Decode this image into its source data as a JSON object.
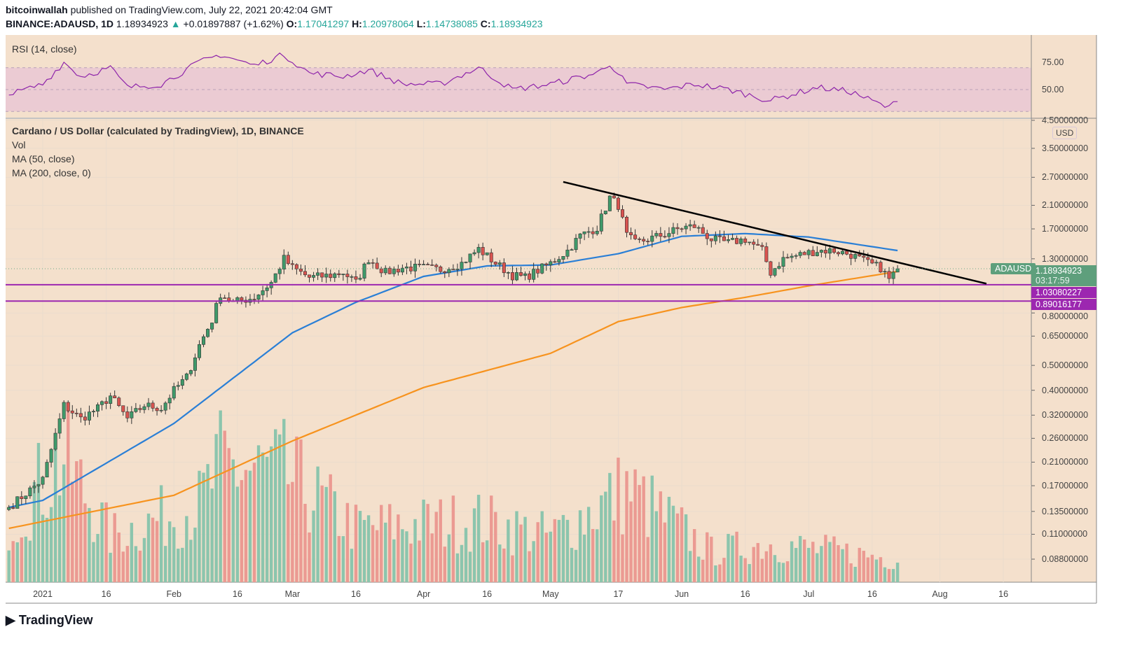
{
  "header": {
    "author": "bitcoinwallah",
    "published": "published on TradingView.com, July 22, 2021 20:42:04 GMT",
    "symbol": "BINANCE:ADAUSD, 1D",
    "last": "1.18934923",
    "change": "+0.01897887 (+1.62%)",
    "o_label": "O:",
    "o": "1.17041297",
    "h_label": "H:",
    "h": "1.20978064",
    "l_label": "L:",
    "l": "1.14738085",
    "c_label": "C:",
    "c": "1.18934923"
  },
  "legend": {
    "title": "Cardano / US Dollar (calculated by TradingView), 1D, BINANCE",
    "vol": "Vol",
    "ma50": "MA (50, close)",
    "ma200": "MA (200, close, 0)",
    "rsi": "RSI (14, close)"
  },
  "brand": "TradingView",
  "colors": {
    "background": "#f4e0cc",
    "up": "#3f9a6a",
    "down": "#d9534f",
    "ma50": "#2a7fd6",
    "ma200": "#f7931e",
    "rsi": "#8e24aa",
    "levels": "#9c27b0",
    "trendline": "#000000"
  },
  "chart_data": {
    "type": "candlestick",
    "y_scale": "log",
    "currency": "USD",
    "y_ticks": [
      "4.50000000",
      "3.50000000",
      "2.70000000",
      "2.10000000",
      "1.70000000",
      "1.30000000",
      "0.80000000",
      "0.65000000",
      "0.50000000",
      "0.40000000",
      "0.32000000",
      "0.26000000",
      "0.21000000",
      "0.17000000",
      "0.13500000",
      "0.11000000",
      "0.08800000"
    ],
    "x_ticks": [
      [
        "2021",
        "2021-01-01"
      ],
      [
        "16",
        "2021-01-16"
      ],
      [
        "Feb",
        "2021-02-01"
      ],
      [
        "16",
        "2021-02-16"
      ],
      [
        "Mar",
        "2021-03-01"
      ],
      [
        "16",
        "2021-03-16"
      ],
      [
        "Apr",
        "2021-04-01"
      ],
      [
        "16",
        "2021-04-16"
      ],
      [
        "May",
        "2021-05-01"
      ],
      [
        "17",
        "2021-05-17"
      ],
      [
        "Jun",
        "2021-06-01"
      ],
      [
        "16",
        "2021-06-16"
      ],
      [
        "Jul",
        "2021-07-01"
      ],
      [
        "16",
        "2021-07-16"
      ],
      [
        "Aug",
        "2021-08-01"
      ],
      [
        "16",
        "2021-08-16"
      ]
    ],
    "close": [
      [
        "2020-12-24",
        0.14
      ],
      [
        "2021-01-01",
        0.18
      ],
      [
        "2021-01-06",
        0.35
      ],
      [
        "2021-01-10",
        0.31
      ],
      [
        "2021-01-14",
        0.34
      ],
      [
        "2021-01-17",
        0.38
      ],
      [
        "2021-01-21",
        0.31
      ],
      [
        "2021-01-25",
        0.35
      ],
      [
        "2021-01-29",
        0.34
      ],
      [
        "2021-02-01",
        0.4
      ],
      [
        "2021-02-04",
        0.45
      ],
      [
        "2021-02-07",
        0.6
      ],
      [
        "2021-02-10",
        0.75
      ],
      [
        "2021-02-12",
        0.95
      ],
      [
        "2021-02-15",
        0.88
      ],
      [
        "2021-02-20",
        0.92
      ],
      [
        "2021-02-24",
        1.05
      ],
      [
        "2021-02-27",
        1.3
      ],
      [
        "2021-03-01",
        1.2
      ],
      [
        "2021-03-05",
        1.1
      ],
      [
        "2021-03-10",
        1.12
      ],
      [
        "2021-03-13",
        1.15
      ],
      [
        "2021-03-16",
        1.05
      ],
      [
        "2021-03-19",
        1.3
      ],
      [
        "2021-03-23",
        1.15
      ],
      [
        "2021-03-27",
        1.2
      ],
      [
        "2021-04-01",
        1.2
      ],
      [
        "2021-04-05",
        1.18
      ],
      [
        "2021-04-10",
        1.25
      ],
      [
        "2021-04-14",
        1.42
      ],
      [
        "2021-04-18",
        1.25
      ],
      [
        "2021-04-22",
        1.12
      ],
      [
        "2021-04-25",
        1.1
      ],
      [
        "2021-05-01",
        1.25
      ],
      [
        "2021-05-05",
        1.4
      ],
      [
        "2021-05-08",
        1.6
      ],
      [
        "2021-05-12",
        1.72
      ],
      [
        "2021-05-15",
        2.25
      ],
      [
        "2021-05-17",
        2.1
      ],
      [
        "2021-05-19",
        1.6
      ],
      [
        "2021-05-21",
        1.5
      ],
      [
        "2021-05-24",
        1.55
      ],
      [
        "2021-05-28",
        1.62
      ],
      [
        "2021-06-01",
        1.72
      ],
      [
        "2021-06-04",
        1.74
      ],
      [
        "2021-06-08",
        1.55
      ],
      [
        "2021-06-12",
        1.5
      ],
      [
        "2021-06-16",
        1.55
      ],
      [
        "2021-06-20",
        1.4
      ],
      [
        "2021-06-22",
        1.15
      ],
      [
        "2021-06-25",
        1.3
      ],
      [
        "2021-06-29",
        1.35
      ],
      [
        "2021-07-03",
        1.4
      ],
      [
        "2021-07-07",
        1.4
      ],
      [
        "2021-07-11",
        1.35
      ],
      [
        "2021-07-15",
        1.25
      ],
      [
        "2021-07-18",
        1.2
      ],
      [
        "2021-07-20",
        1.08
      ],
      [
        "2021-07-22",
        1.19
      ]
    ],
    "ma50": [
      [
        "2020-12-24",
        0.14
      ],
      [
        "2021-01-01",
        0.149
      ],
      [
        "2021-02-01",
        0.297
      ],
      [
        "2021-03-01",
        0.67
      ],
      [
        "2021-03-16",
        0.88
      ],
      [
        "2021-04-01",
        1.11
      ],
      [
        "2021-04-16",
        1.22
      ],
      [
        "2021-05-01",
        1.23
      ],
      [
        "2021-05-17",
        1.36
      ],
      [
        "2021-06-01",
        1.59
      ],
      [
        "2021-06-16",
        1.63
      ],
      [
        "2021-07-01",
        1.58
      ],
      [
        "2021-07-22",
        1.4
      ]
    ],
    "ma200": [
      [
        "2020-12-24",
        0.116
      ],
      [
        "2021-02-01",
        0.156
      ],
      [
        "2021-03-01",
        0.254
      ],
      [
        "2021-04-01",
        0.41
      ],
      [
        "2021-05-01",
        0.557
      ],
      [
        "2021-05-17",
        0.74
      ],
      [
        "2021-06-01",
        0.84
      ],
      [
        "2021-06-16",
        0.92
      ],
      [
        "2021-07-01",
        1.02
      ],
      [
        "2021-07-22",
        1.16
      ]
    ],
    "rsi": {
      "ticks": [
        "75.00",
        "50.00"
      ],
      "band": [
        30,
        70
      ],
      "values": [
        [
          "2020-12-24",
          45
        ],
        [
          "2021-01-01",
          55
        ],
        [
          "2021-01-06",
          75
        ],
        [
          "2021-01-10",
          62
        ],
        [
          "2021-01-17",
          70
        ],
        [
          "2021-01-21",
          52
        ],
        [
          "2021-01-29",
          55
        ],
        [
          "2021-02-07",
          75
        ],
        [
          "2021-02-12",
          82
        ],
        [
          "2021-02-20",
          72
        ],
        [
          "2021-02-27",
          82
        ],
        [
          "2021-03-05",
          65
        ],
        [
          "2021-03-13",
          62
        ],
        [
          "2021-03-19",
          68
        ],
        [
          "2021-03-27",
          55
        ],
        [
          "2021-04-05",
          55
        ],
        [
          "2021-04-14",
          70
        ],
        [
          "2021-04-22",
          50
        ],
        [
          "2021-05-01",
          55
        ],
        [
          "2021-05-12",
          65
        ],
        [
          "2021-05-15",
          74
        ],
        [
          "2021-05-19",
          55
        ],
        [
          "2021-05-28",
          50
        ],
        [
          "2021-06-04",
          55
        ],
        [
          "2021-06-12",
          50
        ],
        [
          "2021-06-22",
          40
        ],
        [
          "2021-07-03",
          52
        ],
        [
          "2021-07-11",
          48
        ],
        [
          "2021-07-20",
          33
        ],
        [
          "2021-07-22",
          42
        ]
      ]
    },
    "volume": [
      [
        "2020-12-24",
        0.08
      ],
      [
        "2021-01-06",
        0.16
      ],
      [
        "2021-01-17",
        0.06
      ],
      [
        "2021-02-07",
        0.1
      ],
      [
        "2021-02-12",
        0.15
      ],
      [
        "2021-02-27",
        0.14
      ],
      [
        "2021-03-16",
        0.07
      ],
      [
        "2021-04-14",
        0.08
      ],
      [
        "2021-05-01",
        0.06
      ],
      [
        "2021-05-19",
        0.12
      ],
      [
        "2021-06-08",
        0.04
      ],
      [
        "2021-06-22",
        0.05
      ],
      [
        "2021-07-22",
        0.03
      ]
    ],
    "trendline": [
      [
        "2021-05-04",
        2.59
      ],
      [
        "2021-08-12",
        1.04
      ]
    ],
    "levels": [
      {
        "value": 1.03080227,
        "label": "1.03080227"
      },
      {
        "value": 0.89016177,
        "label": "0.89016177"
      }
    ],
    "last_price": {
      "symbol": "ADAUSD",
      "value": 1.18934923,
      "label": "1.18934923",
      "countdown": "03:17:59"
    }
  }
}
